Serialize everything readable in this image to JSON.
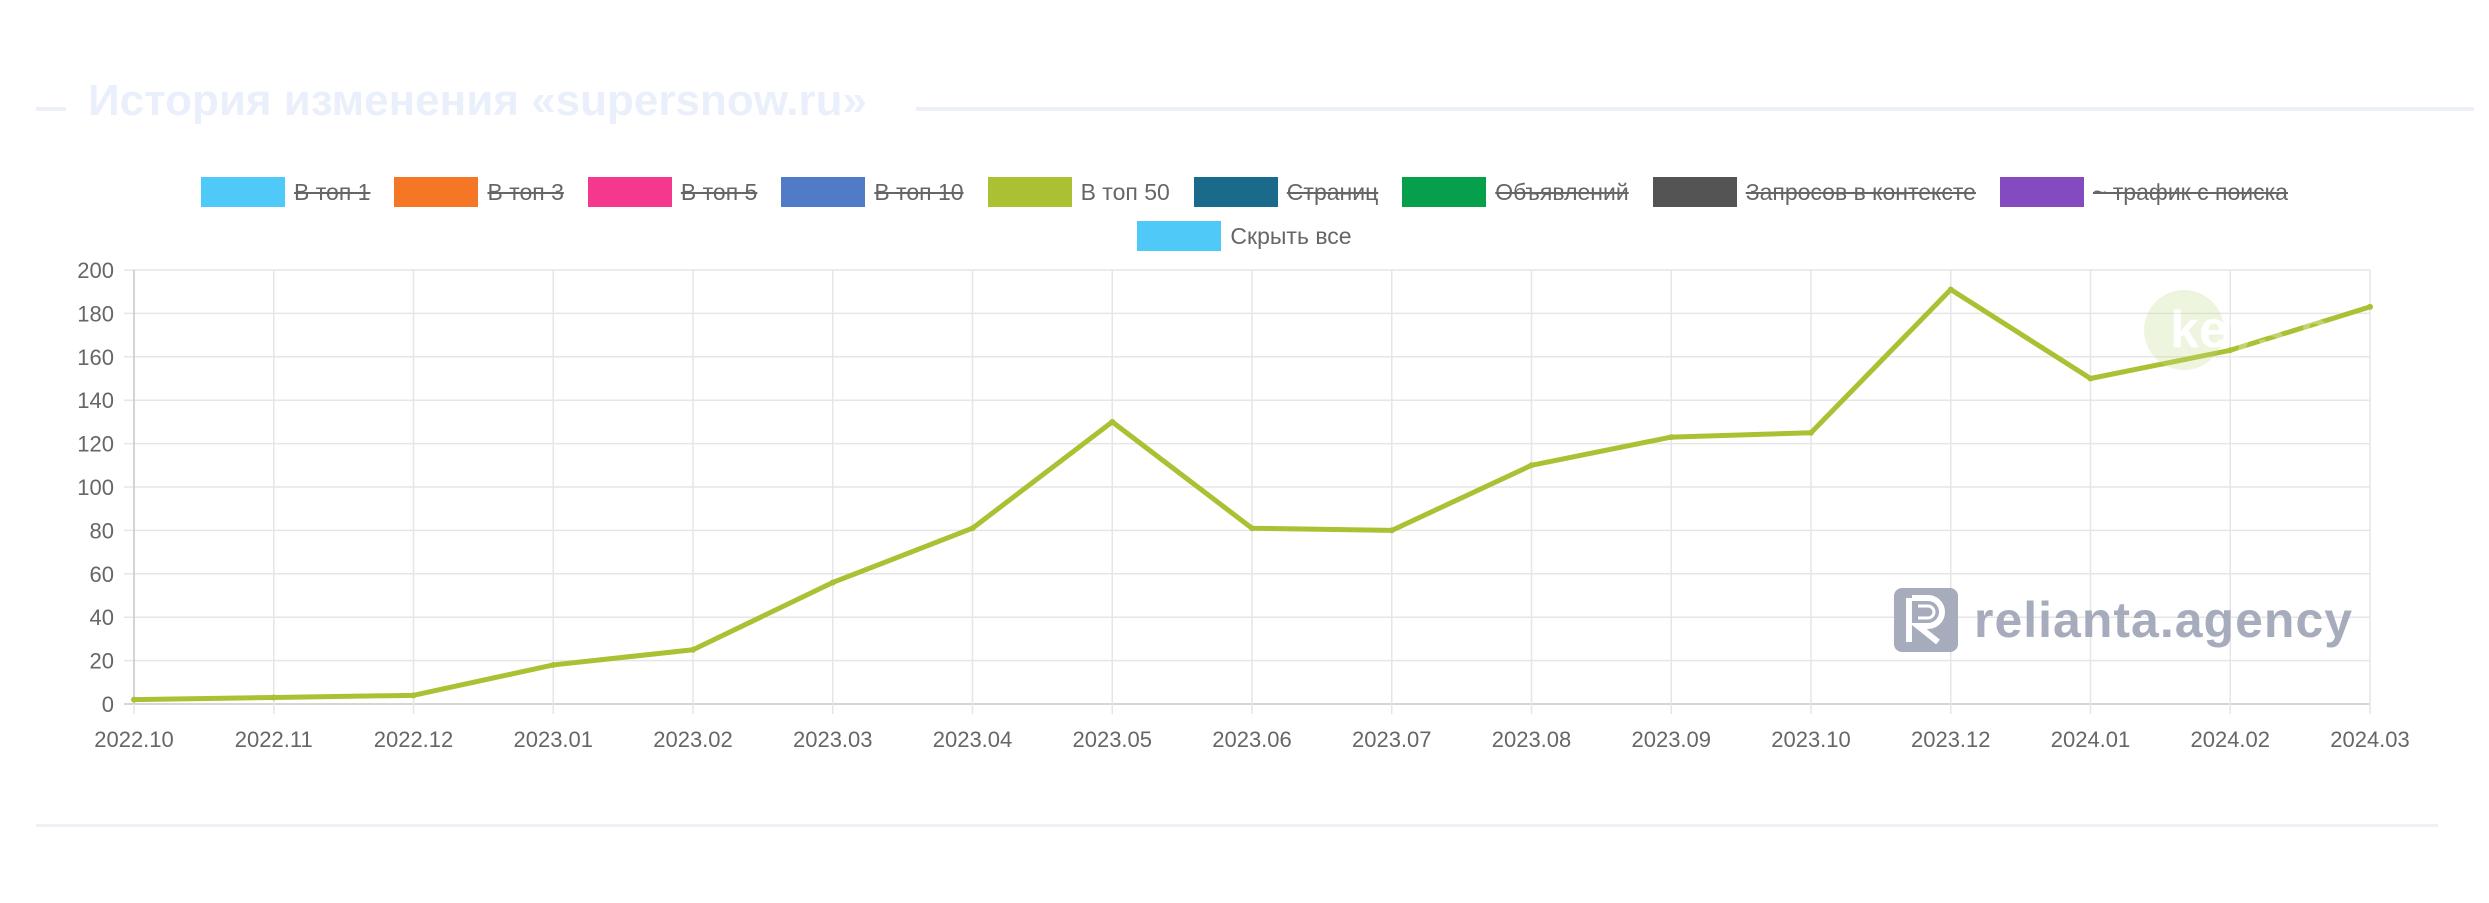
{
  "panel": {
    "title": "История изменения «supersnow.ru»"
  },
  "legend": {
    "row1": [
      {
        "label": "В топ 1",
        "color": "#4fc9f7",
        "hidden": true
      },
      {
        "label": "В топ 3",
        "color": "#f57624",
        "hidden": true
      },
      {
        "label": "В топ 5",
        "color": "#f5378e",
        "hidden": true
      },
      {
        "label": "В топ 10",
        "color": "#527bc7",
        "hidden": true
      },
      {
        "label": "В топ 50",
        "color": "#abc133",
        "hidden": false
      },
      {
        "label": "Страниц",
        "color": "#196a8b",
        "hidden": true
      },
      {
        "label": "Объявлений",
        "color": "#06a04c",
        "hidden": true
      },
      {
        "label": "Запросов в контексте",
        "color": "#545454",
        "hidden": true
      },
      {
        "label": "~ трафик с поиска",
        "color": "#844abf",
        "hidden": true
      }
    ],
    "hide_all": {
      "label": "Скрыть все",
      "color": "#4fc9f7"
    }
  },
  "watermarks": {
    "keys": "keys.so",
    "relianta": "relianta.agency"
  },
  "chart_data": {
    "type": "line",
    "x": [
      "2022.10",
      "2022.11",
      "2022.12",
      "2023.01",
      "2023.02",
      "2023.03",
      "2023.04",
      "2023.05",
      "2023.06",
      "2023.07",
      "2023.08",
      "2023.09",
      "2023.10",
      "2023.12",
      "2024.01",
      "2024.02",
      "2024.03"
    ],
    "series": [
      {
        "name": "В топ 50",
        "color": "#abc133",
        "values": [
          2,
          3,
          4,
          18,
          25,
          56,
          81,
          130,
          81,
          80,
          110,
          123,
          125,
          191,
          150,
          163,
          183
        ]
      }
    ],
    "ylim": [
      0,
      200
    ],
    "yticks": [
      0,
      20,
      40,
      60,
      80,
      100,
      120,
      140,
      160,
      180,
      200
    ],
    "grid": true,
    "legend_position": "top"
  }
}
